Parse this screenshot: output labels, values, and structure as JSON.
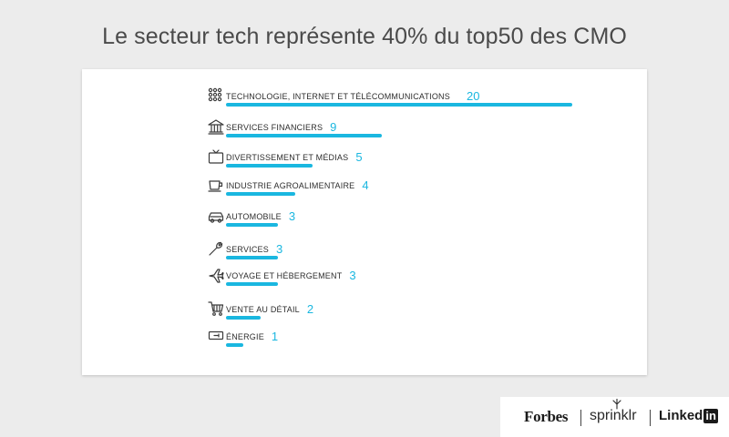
{
  "header": {
    "title": "Le secteur tech représente 40% du top50 des CMO"
  },
  "chart_data": {
    "type": "bar",
    "orientation": "horizontal",
    "title": "Le secteur tech représente 40% du top50 des CMO",
    "categories": [
      "TECHNOLOGIE, INTERNET ET TÉLÉCOMMUNICATIONS",
      "SERVICES FINANCIERS",
      "DIVERTISSEMENT ET MÉDIAS",
      "INDUSTRIE AGROALIMENTAIRE",
      "AUTOMOBILE",
      "SERVICES",
      "VOYAGE ET HÉBERGEMENT",
      "VENTE AU DÉTAIL",
      "ÉNERGIE"
    ],
    "values": [
      20,
      9,
      5,
      4,
      3,
      3,
      3,
      2,
      1
    ],
    "icons": [
      "network-icon",
      "bank-icon",
      "tv-icon",
      "cup-icon",
      "car-icon",
      "wrench-icon",
      "airplane-icon",
      "cart-icon",
      "battery-icon"
    ],
    "bar_color": "#1ab7e0",
    "xlim": [
      0,
      20
    ],
    "xlabel": "",
    "ylabel": ""
  },
  "footer": {
    "forbes": "Forbes",
    "sprinklr": "sprinklr",
    "linkedin_text": "Linked",
    "linkedin_box": "in"
  }
}
